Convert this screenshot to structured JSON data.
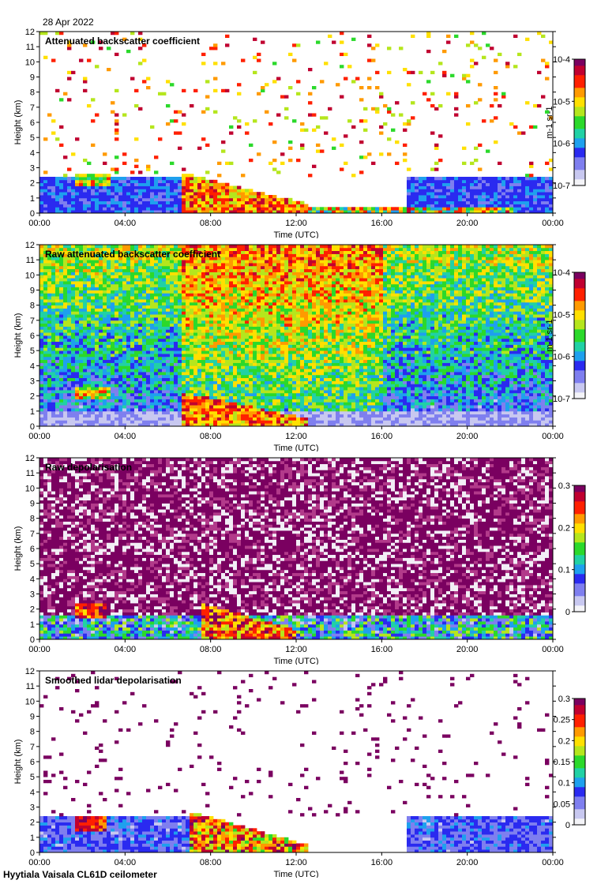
{
  "header": {
    "date": "28 Apr 2022"
  },
  "footer": {
    "instrument": "Hyytiala Vaisala CL61D ceilometer"
  },
  "chart_data": [
    {
      "type": "heatmap",
      "title": "Attenuated backscatter coefficient",
      "xlabel": "Time (UTC)",
      "ylabel": "Height (km)",
      "x_ticks": [
        "00:00",
        "04:00",
        "08:00",
        "12:00",
        "16:00",
        "20:00",
        "00:00"
      ],
      "y_ticks": [
        "0",
        "1",
        "2",
        "3",
        "4",
        "5",
        "6",
        "7",
        "8",
        "9",
        "10",
        "11",
        "12"
      ],
      "ylim": [
        0,
        12
      ],
      "colorbar": {
        "scale": "log",
        "unit": "m-1 sr-1",
        "labels": [
          "10-7",
          "10-6",
          "10-5",
          "10-4"
        ],
        "range": [
          1e-07,
          0.0001
        ]
      }
    },
    {
      "type": "heatmap",
      "title": "Raw attenuated backscatter coefficient",
      "xlabel": "Time (UTC)",
      "ylabel": "Height (km)",
      "x_ticks": [
        "00:00",
        "04:00",
        "08:00",
        "12:00",
        "16:00",
        "20:00",
        "00:00"
      ],
      "y_ticks": [
        "0",
        "1",
        "2",
        "3",
        "4",
        "5",
        "6",
        "7",
        "8",
        "9",
        "10",
        "11",
        "12"
      ],
      "ylim": [
        0,
        12
      ],
      "colorbar": {
        "scale": "log",
        "unit": "m-1 sr-1",
        "labels": [
          "10-7",
          "10-6",
          "10-5",
          "10-4"
        ],
        "range": [
          1e-07,
          0.0001
        ]
      }
    },
    {
      "type": "heatmap",
      "title": "Raw depolarisation",
      "xlabel": "Time (UTC)",
      "ylabel": "Height (km)",
      "x_ticks": [
        "00:00",
        "04:00",
        "08:00",
        "12:00",
        "16:00",
        "20:00",
        "00:00"
      ],
      "y_ticks": [
        "0",
        "1",
        "2",
        "3",
        "4",
        "5",
        "6",
        "7",
        "8",
        "9",
        "10",
        "11",
        "12"
      ],
      "ylim": [
        0,
        12
      ],
      "colorbar": {
        "scale": "linear",
        "unit": "",
        "labels": [
          "0",
          "0.1",
          "0.2",
          "0.3"
        ],
        "range": [
          0,
          0.3
        ]
      }
    },
    {
      "type": "heatmap",
      "title": "Smoothed lidar depolarisation",
      "xlabel": "Time (UTC)",
      "ylabel": "Height (km)",
      "x_ticks": [
        "00:00",
        "04:00",
        "08:00",
        "12:00",
        "16:00",
        "20:00",
        "00:00"
      ],
      "y_ticks": [
        "0",
        "1",
        "2",
        "3",
        "4",
        "5",
        "6",
        "7",
        "8",
        "9",
        "10",
        "11",
        "12"
      ],
      "ylim": [
        0,
        12
      ],
      "colorbar": {
        "scale": "linear",
        "unit": "",
        "labels": [
          "0",
          "0.05",
          "0.1",
          "0.15",
          "0.2",
          "0.25",
          "0.3"
        ],
        "range": [
          0,
          0.3
        ]
      }
    }
  ]
}
